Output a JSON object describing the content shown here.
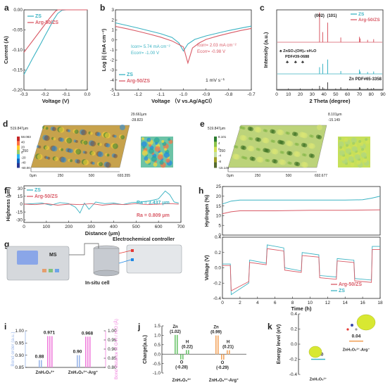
{
  "colors": {
    "zs": "#3bb3c3",
    "arg": "#d95a66",
    "axis": "#222222",
    "pink_bar": "#f07fdc",
    "blue_bar": "#9ab6ea",
    "green_bar": "#6cc46c",
    "orange_bar": "#f2a35c",
    "xrd_zs": "#3bb3c3",
    "xrd_arg": "#d95a66",
    "xrd_ref": "#444444"
  },
  "chart_data": [
    {
      "panel": "a",
      "type": "line",
      "xlabel": "Voltage (V)",
      "ylabel": "Current (A)",
      "xlim": [
        -0.3,
        0.0
      ],
      "ylim": [
        -0.2,
        0.0
      ],
      "xticks": [
        "-0.3",
        "-0.2",
        "-0.1",
        "0.0"
      ],
      "yticks": [
        "0.00",
        "-0.05",
        "-0.10",
        "-0.15",
        "-0.20"
      ],
      "legend": "top-left",
      "series": [
        {
          "name": "ZS",
          "color": "#3bb3c3",
          "x": [
            -0.3,
            -0.28,
            -0.26,
            -0.24,
            -0.22,
            -0.2,
            -0.18,
            -0.16,
            -0.14,
            -0.12,
            -0.1,
            -0.05,
            0.0
          ],
          "y": [
            -0.161,
            -0.142,
            -0.122,
            -0.103,
            -0.084,
            -0.064,
            -0.045,
            -0.025,
            -0.009,
            -0.001,
            0.0,
            0.0,
            0.0
          ]
        },
        {
          "name": "Arg-50/ZS",
          "color": "#d95a66",
          "x": [
            -0.3,
            -0.28,
            -0.26,
            -0.24,
            -0.22,
            -0.2,
            -0.18,
            -0.16,
            -0.15,
            -0.14,
            -0.1,
            -0.05,
            0.0
          ],
          "y": [
            -0.106,
            -0.092,
            -0.078,
            -0.064,
            -0.05,
            -0.036,
            -0.022,
            -0.009,
            -0.003,
            0.0,
            0.0,
            0.0,
            0.0
          ]
        }
      ]
    },
    {
      "panel": "b",
      "type": "line",
      "xlabel": "Voltage （V vs.Ag/AgCl）",
      "ylabel": "Log |i| (mA cm⁻²)",
      "xlim": [
        -1.3,
        -0.7
      ],
      "ylim": [
        -5,
        3
      ],
      "xticks": [
        "-1.3",
        "-1.2",
        "-1.1",
        "-1.0",
        "-0.9",
        "-0.8",
        "-0.7"
      ],
      "yticks": [
        "-5",
        "-4",
        "-3",
        "-2",
        "-1",
        "0",
        "1",
        "2",
        "3"
      ],
      "legend": "bottom-left",
      "annotations": [
        "I<sub>corr</sub>= 5.74 mA cm⁻²",
        "E<sub>corr</sub>= -1.00 V",
        "I<sub>corr</sub>= 2.03 mA cm⁻²",
        "E<sub>corr</sub>= -0.98 V",
        "1 mV s⁻¹"
      ],
      "ann_zs": [
        "Icorr= 5.74 mA cm⁻²",
        "Ecorr= -1.00 V"
      ],
      "ann_arg": [
        "Icorr= 2.03 mA cm⁻²",
        "Ecorr= -0.98 V"
      ],
      "ann_rate": "1 mV s⁻¹",
      "series": [
        {
          "name": "ZS",
          "color": "#3bb3c3",
          "x": [
            -1.3,
            -1.25,
            -1.2,
            -1.15,
            -1.1,
            -1.05,
            -1.02,
            -1.0,
            -0.98,
            -0.95,
            -0.9,
            -0.85,
            -0.8,
            -0.75,
            -0.7
          ],
          "y": [
            1.7,
            1.45,
            1.18,
            0.9,
            0.62,
            0.25,
            -0.3,
            -1.1,
            -0.4,
            0.05,
            0.4,
            0.68,
            0.94,
            1.16,
            1.38
          ]
        },
        {
          "name": "Arg-50/ZS",
          "color": "#d95a66",
          "x": [
            -1.3,
            -1.25,
            -1.2,
            -1.15,
            -1.1,
            -1.05,
            -1.0,
            -0.98,
            -0.96,
            -0.93,
            -0.9,
            -0.85,
            -0.8,
            -0.75,
            -0.7
          ],
          "y": [
            1.35,
            1.12,
            0.86,
            0.58,
            0.28,
            -0.1,
            -0.7,
            -2.3,
            -0.8,
            -0.3,
            0.05,
            0.38,
            0.66,
            0.92,
            1.15
          ]
        }
      ]
    },
    {
      "panel": "c",
      "type": "bar",
      "xlabel": "2 Theta (degree)",
      "ylabel": "Intensity (a.u.)",
      "xlim": [
        0,
        90
      ],
      "xticks": [
        "0",
        "10",
        "20",
        "30",
        "40",
        "50",
        "60",
        "70",
        "80",
        "90"
      ],
      "legend": "top-right",
      "series": [
        {
          "name": "ZS",
          "color": "#3bb3c3",
          "peaks": [
            [
              36.3,
              0.28
            ],
            [
              39.0,
              0.42
            ],
            [
              43.2,
              0.6
            ],
            [
              54.3,
              0.12
            ],
            [
              70.1,
              0.18
            ],
            [
              70.7,
              0.1
            ],
            [
              77.0,
              0.08
            ],
            [
              82.1,
              0.1
            ]
          ]
        },
        {
          "name": "Arg-50/ZS",
          "color": "#d95a66",
          "peaks": [
            [
              36.3,
              0.88
            ],
            [
              39.0,
              0.3
            ],
            [
              43.2,
              0.58
            ],
            [
              54.3,
              0.14
            ],
            [
              70.1,
              0.16
            ],
            [
              70.7,
              0.11
            ],
            [
              77.0,
              0.07
            ],
            [
              82.1,
              0.09
            ]
          ]
        },
        {
          "name": "Zn PDF#65-3358",
          "color": "#444444",
          "peaks": [
            [
              36.3,
              0.5
            ],
            [
              39.0,
              0.3
            ],
            [
              43.2,
              1.0
            ],
            [
              54.3,
              0.3
            ],
            [
              70.1,
              0.3
            ],
            [
              70.7,
              0.25
            ],
            [
              77.0,
              0.2
            ],
            [
              82.1,
              0.2
            ]
          ]
        }
      ],
      "peak_labels": [
        "(002)",
        "(101)"
      ],
      "marker_label": "ZnSO₄(OH)₆·xH₂O",
      "marker_pdf": "PDF#39-0688",
      "ref_label": "Zn PDF#65-3358"
    },
    {
      "panel": "d",
      "type": "heatmap",
      "colorbar_ticks": [
        "58.083",
        "40",
        "20",
        "0",
        "-20",
        "-40",
        "-60.00"
      ],
      "axis_values": [
        "519.847μm",
        "250",
        "0μm",
        "250",
        "500",
        "693.355",
        "29.661μm",
        "-28.823"
      ]
    },
    {
      "panel": "e",
      "type": "heatmap",
      "colorbar_ticks": [
        "8.101",
        "4",
        "0",
        "-4",
        "-8",
        "-15.149"
      ],
      "axis_values": [
        "519.847μm",
        "250",
        "0μm",
        "250",
        "500",
        "692.677",
        "8.101μm",
        "-15.149"
      ]
    },
    {
      "panel": "f",
      "type": "line",
      "xlabel": "Distance (μm)",
      "ylabel": "Highness (μm)",
      "xlim": [
        0,
        700
      ],
      "ylim": [
        -35,
        35
      ],
      "xticks": [
        "0",
        "100",
        "200",
        "300",
        "400",
        "500",
        "600",
        "700"
      ],
      "yticks": [
        "30",
        "15",
        "0",
        "-15",
        "-30"
      ],
      "legend": "top-left",
      "annotations": [
        "Ra = 3.437 μm",
        "Ra = 0.809 μm"
      ],
      "series": [
        {
          "name": "ZS",
          "color": "#3bb3c3",
          "x": [
            0,
            40,
            80,
            120,
            160,
            200,
            230,
            250,
            270,
            290,
            320,
            360,
            400,
            440,
            480,
            520,
            560,
            600,
            630,
            650,
            670,
            690
          ],
          "y": [
            0,
            1,
            2,
            -2,
            3,
            1,
            -6,
            -17,
            2,
            -10,
            4,
            1,
            2,
            -1,
            3,
            4,
            6,
            10,
            25,
            18,
            4,
            2
          ]
        },
        {
          "name": "Arg-50/ZS",
          "color": "#d95a66",
          "x": [
            0,
            50,
            100,
            150,
            200,
            250,
            300,
            350,
            400,
            450,
            500,
            550,
            600,
            650,
            690
          ],
          "y": [
            0,
            -1,
            1,
            -2,
            0,
            -1,
            1,
            -2,
            0,
            -1,
            1,
            -1,
            0,
            1,
            0
          ]
        }
      ]
    },
    {
      "panel": "h",
      "type": "line",
      "xlabel": "Time (h)",
      "ylabel": "Voltage (V)",
      "ylabel_top": "Hydrogen (%)",
      "xlim": [
        0,
        18
      ],
      "xticks": [
        "0",
        "2",
        "4",
        "6",
        "8",
        "10",
        "12",
        "14",
        "16",
        "18"
      ],
      "yticks_top": [
        "25",
        "20",
        "15",
        "10",
        "5",
        "0"
      ],
      "yticks_bottom": [
        "0.4",
        "0.2",
        "0.0",
        "-0.2",
        "-0.4"
      ],
      "legend": "bottom-right",
      "hydrogen": [
        {
          "name": "ZS",
          "color": "#3bb3c3",
          "x": [
            0,
            1,
            2,
            3,
            6,
            10,
            14,
            16,
            17,
            18
          ],
          "y": [
            16,
            17.5,
            18,
            18,
            18,
            18,
            18,
            18.2,
            19,
            20
          ]
        },
        {
          "name": "Arg-50/ZS",
          "color": "#d95a66",
          "x": [
            0,
            1,
            2,
            6,
            10,
            14,
            18
          ],
          "y": [
            11,
            12,
            12.5,
            12.5,
            12.8,
            12.8,
            13
          ]
        }
      ],
      "voltage": [
        {
          "name": "ZS",
          "color": "#3bb3c3",
          "x": [
            0,
            0.9,
            1.0,
            3.0,
            3.1,
            5.0,
            5.1,
            7.0,
            7.1,
            9.0,
            9.1,
            11.0,
            11.1,
            13.0,
            13.1,
            15.0,
            15.1,
            17.0,
            17.1,
            18
          ],
          "y": [
            0.05,
            0.05,
            -0.35,
            -0.2,
            0.1,
            0.06,
            0.3,
            0.26,
            0.0,
            -0.04,
            0.2,
            0.17,
            -0.1,
            -0.12,
            0.12,
            0.1,
            -0.14,
            -0.16,
            0.28,
            0.28
          ]
        },
        {
          "name": "Arg-50/ZS",
          "color": "#d95a66",
          "x": [
            0,
            0.9,
            1.0,
            3.0,
            3.1,
            5.0,
            5.1,
            7.0,
            7.1,
            9.0,
            9.1,
            11.0,
            11.1,
            13.0,
            13.1,
            15.0,
            15.1,
            17.0,
            17.1,
            18
          ],
          "y": [
            0.03,
            0.03,
            -0.3,
            -0.18,
            0.07,
            0.04,
            0.25,
            0.22,
            -0.03,
            -0.06,
            0.16,
            0.14,
            -0.13,
            -0.15,
            0.09,
            0.07,
            -0.17,
            -0.19,
            0.24,
            0.24
          ]
        }
      ]
    },
    {
      "panel": "i",
      "type": "bar",
      "ylabel": "Bond order (a.u.)",
      "ylabel_right": "Bond distance of O-H / H₂O (Å)",
      "ylim_left": [
        0.85,
        1.0
      ],
      "ylim_right": [
        0.8,
        1.0
      ],
      "yticks_left": [
        "1.00",
        "0.95",
        "0.90",
        "0.85"
      ],
      "yticks_right": [
        "1.00",
        "0.95",
        "0.90",
        "0.85",
        "0.80"
      ],
      "categories": [
        "ZnH₂O₆²⁺",
        "ZnH₂O₆²⁺-Arg⁺"
      ],
      "bond_order": [
        0.88,
        0.9
      ],
      "bond_distance": [
        0.971,
        0.968
      ],
      "value_labels": [
        "0.88",
        "0.971",
        "0.90",
        "0.968"
      ]
    },
    {
      "panel": "j",
      "type": "bar",
      "ylabel": "Charge(a.u.)",
      "ylim": [
        -1.0,
        1.5
      ],
      "yticks": [
        "1.5",
        "1.0",
        "0.5",
        "0.0",
        "-0.5",
        "-1.0"
      ],
      "categories": [
        "ZnH₂O₆²⁺",
        "ZnH₂O₆²⁺-Arg⁺"
      ],
      "zs_charges": [
        1.02,
        0.22,
        -0.28
      ],
      "arg_charges": [
        0.99,
        0.21,
        -0.29
      ],
      "labels_zs": [
        "Zn",
        "(1.02)",
        "H",
        "(0.22)",
        "O",
        "(-0.28)"
      ],
      "labels_arg": [
        "Zn",
        "(0.99)",
        "H",
        "(0.21)",
        "O",
        "(-0.29)"
      ]
    },
    {
      "panel": "k",
      "type": "bar",
      "ylabel": "Energy level (eV)",
      "ylim": [
        -0.4,
        0.4
      ],
      "yticks": [
        "0.4",
        "0.2",
        "0.0",
        "-0.2",
        "-0.4"
      ],
      "categories": [
        "ZnH₂O₆²⁺",
        "ZnH₂O₆²⁺-Arg⁺"
      ],
      "values": [
        -0.2,
        0.04
      ],
      "value_labels": [
        "-0.20",
        "0.04"
      ]
    }
  ],
  "panel_labels": [
    "a",
    "b",
    "c",
    "d",
    "e",
    "f",
    "g",
    "h",
    "i",
    "j",
    "k"
  ],
  "g_labels": {
    "ms": "MS",
    "controller": "Electrochemical controller",
    "cell": "In-situ cell"
  }
}
